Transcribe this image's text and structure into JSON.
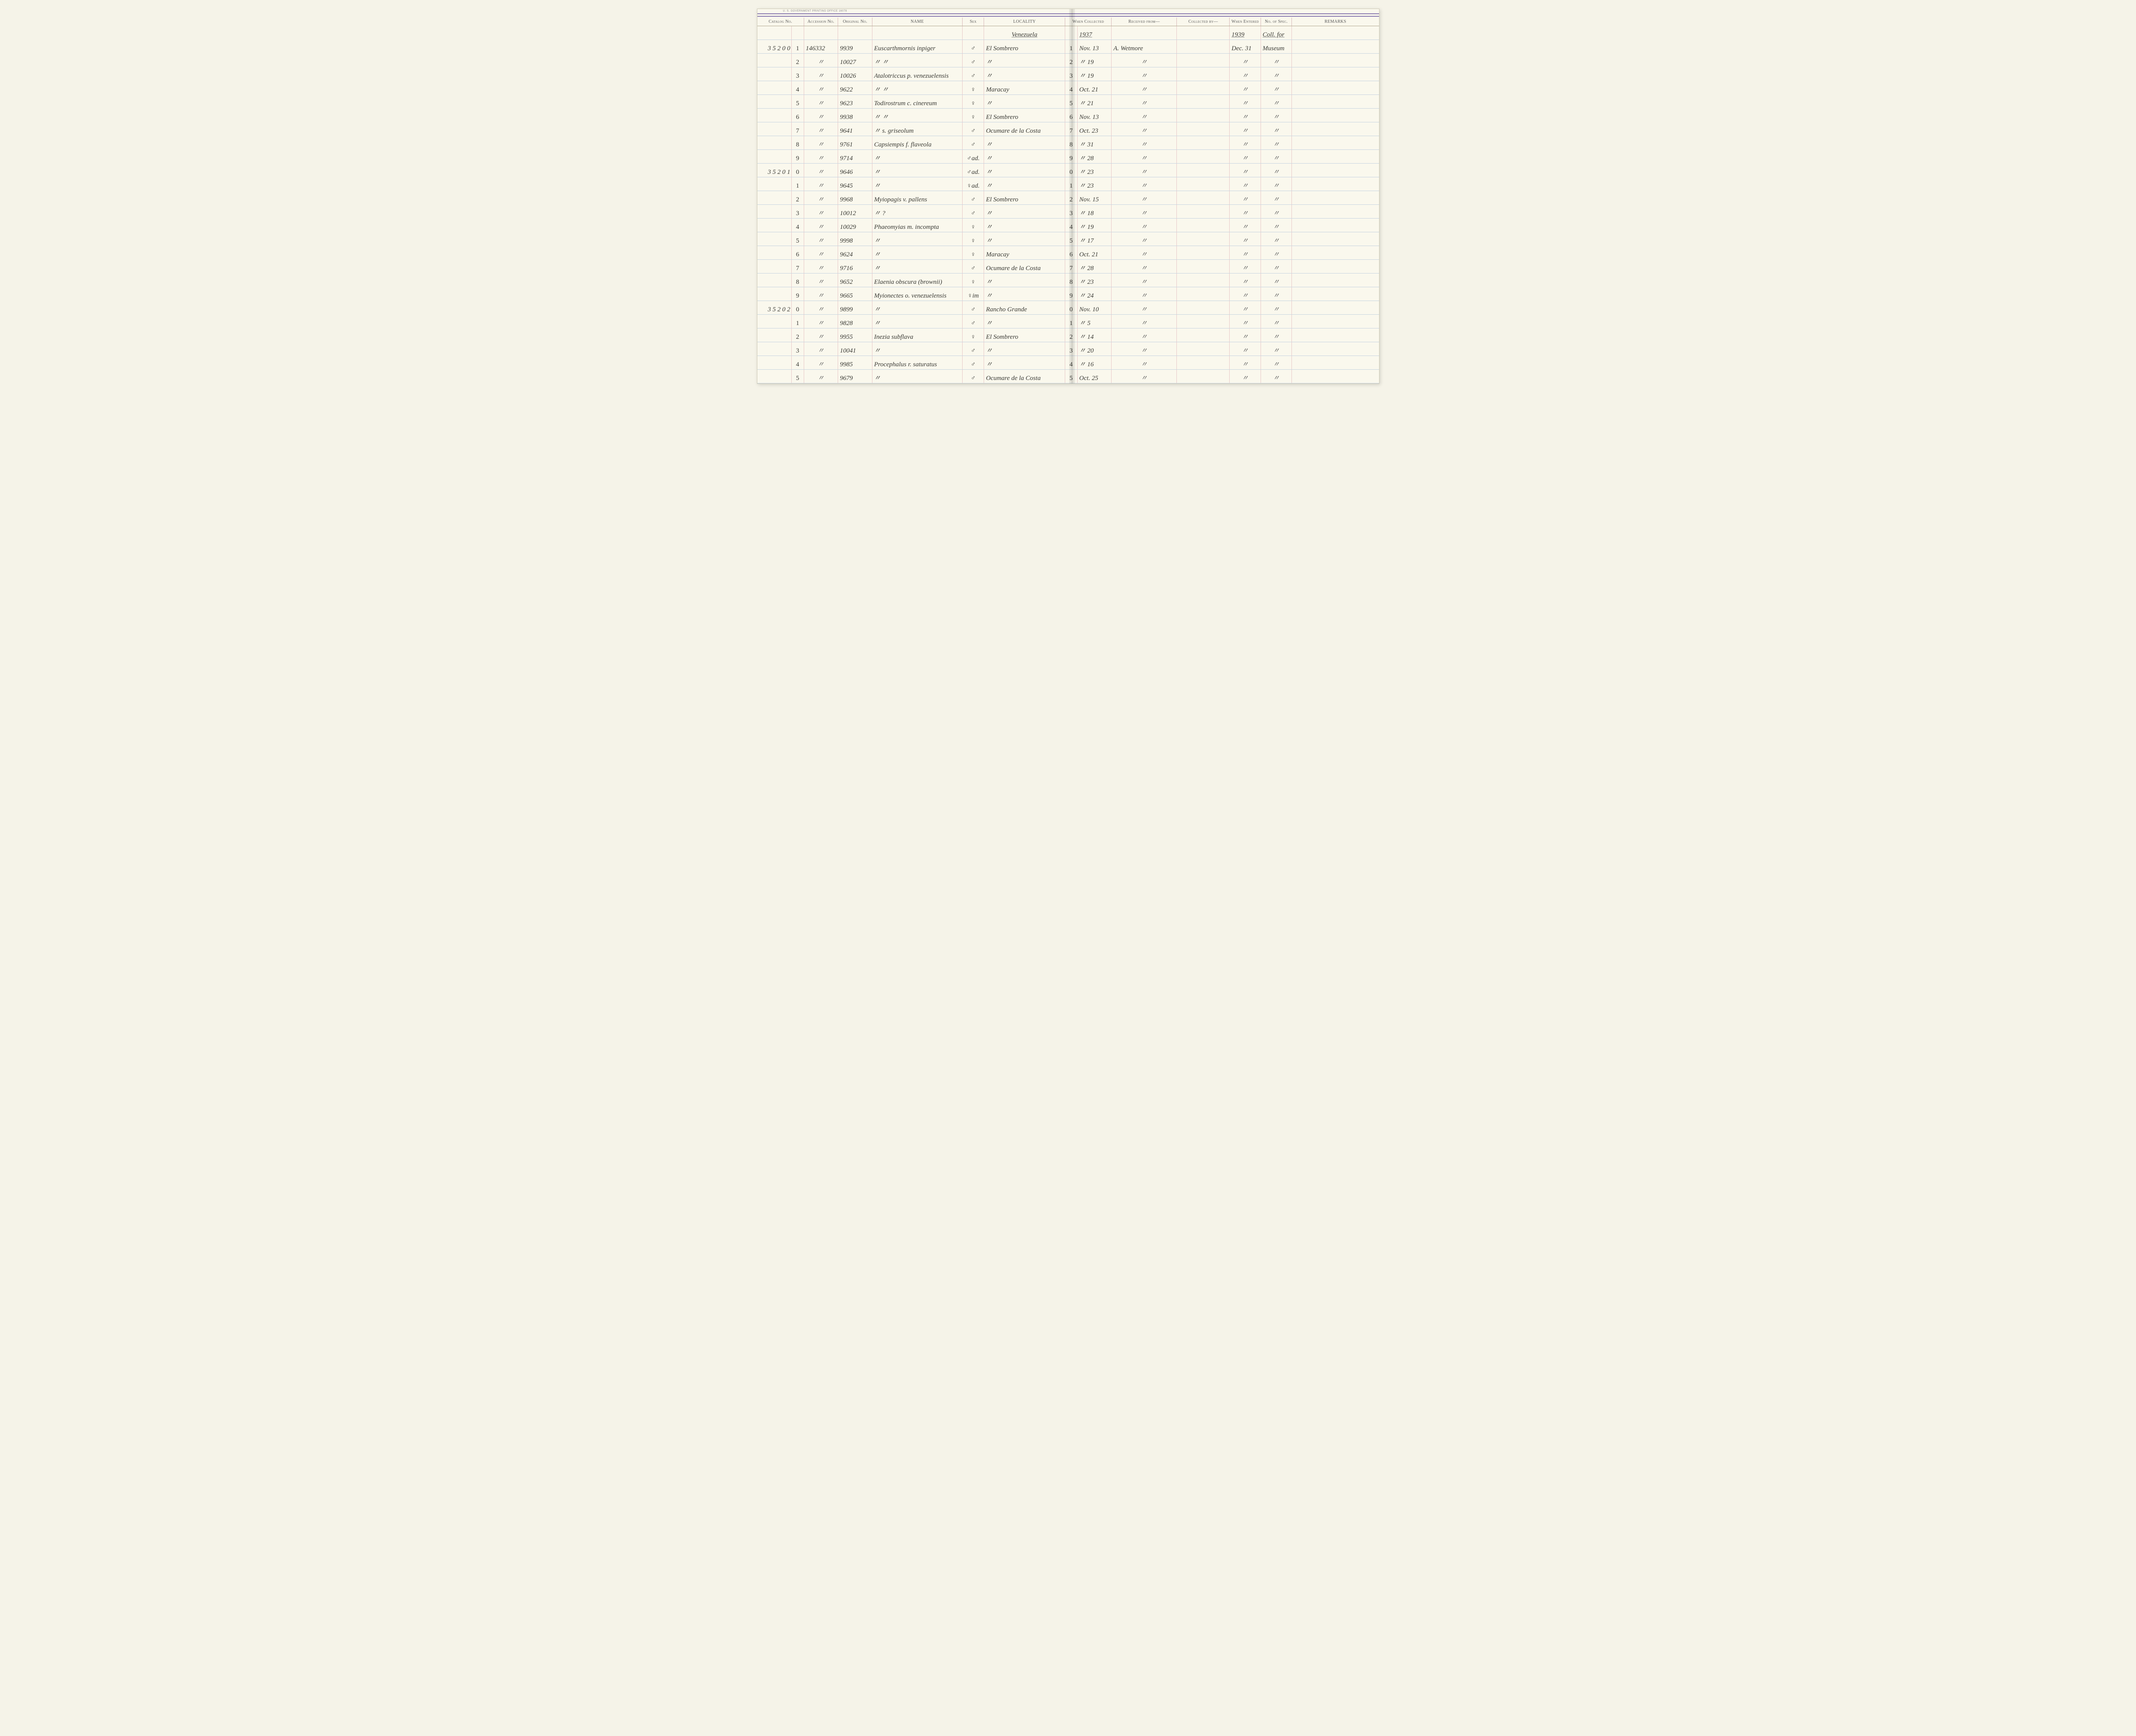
{
  "gpo": "U. S. GOVERNMENT PRINTING OFFICE   16078",
  "headers": {
    "catalog": "Catalog No.",
    "accession": "Accession No.",
    "original": "Original No.",
    "name": "NAME",
    "sex": "Sex",
    "locality": "LOCALITY",
    "when": "When Collected",
    "received": "Received from—",
    "collected_by": "Collected by—",
    "entered": "When Entered",
    "spec": "No. of Spec.",
    "remarks": "REMARKS"
  },
  "context_row": {
    "locality": "Venezuela",
    "when": "1937",
    "entered": "1939",
    "spec": "Coll. for"
  },
  "rows": [
    {
      "cat": "3 5 2 0 0",
      "sub": "1",
      "acc": "146332",
      "orig": "9939",
      "name": "Euscarthmornis inpiger",
      "sex": "♂",
      "loc": "El Sombrero",
      "wsub": "1",
      "when": "Nov. 13",
      "recv": "A. Wetmore",
      "collby": "",
      "ent": "Dec. 31",
      "spec": "Museum"
    },
    {
      "cat": "",
      "sub": "2",
      "acc": "〃",
      "orig": "10027",
      "name": "〃        〃",
      "sex": "♂",
      "loc": "〃",
      "wsub": "2",
      "when": "〃   19",
      "recv": "〃",
      "collby": "",
      "ent": "〃",
      "spec": "〃"
    },
    {
      "cat": "",
      "sub": "3",
      "acc": "〃",
      "orig": "10026",
      "name": "Atalotriccus p. venezuelensis",
      "sex": "♂",
      "loc": "〃",
      "wsub": "3",
      "when": "〃   19",
      "recv": "〃",
      "collby": "",
      "ent": "〃",
      "spec": "〃"
    },
    {
      "cat": "",
      "sub": "4",
      "acc": "〃",
      "orig": "9622",
      "name": "〃        〃",
      "sex": "♀",
      "loc": "Maracay",
      "wsub": "4",
      "when": "Oct. 21",
      "recv": "〃",
      "collby": "",
      "ent": "〃",
      "spec": "〃"
    },
    {
      "cat": "",
      "sub": "5",
      "acc": "〃",
      "orig": "9623",
      "name": "Todirostrum c. cinereum",
      "sex": "♀",
      "loc": "〃",
      "wsub": "5",
      "when": "〃   21",
      "recv": "〃",
      "collby": "",
      "ent": "〃",
      "spec": "〃"
    },
    {
      "cat": "",
      "sub": "6",
      "acc": "〃",
      "orig": "9938",
      "name": "〃        〃",
      "sex": "♀",
      "loc": "El Sombrero",
      "wsub": "6",
      "when": "Nov. 13",
      "recv": "〃",
      "collby": "",
      "ent": "〃",
      "spec": "〃"
    },
    {
      "cat": "",
      "sub": "7",
      "acc": "〃",
      "orig": "9641",
      "name": "〃   s. griseolum",
      "sex": "♂",
      "loc": "Ocumare de la Costa",
      "wsub": "7",
      "when": "Oct. 23",
      "recv": "〃",
      "collby": "",
      "ent": "〃",
      "spec": "〃"
    },
    {
      "cat": "",
      "sub": "8",
      "acc": "〃",
      "orig": "9761",
      "name": "Capsiempis f. flaveola",
      "sex": "♂",
      "loc": "〃",
      "wsub": "8",
      "when": "〃   31",
      "recv": "〃",
      "collby": "",
      "ent": "〃",
      "spec": "〃"
    },
    {
      "cat": "",
      "sub": "9",
      "acc": "〃",
      "orig": "9714",
      "name": "〃",
      "sex": "♂ad.",
      "loc": "〃",
      "wsub": "9",
      "when": "〃   28",
      "recv": "〃",
      "collby": "",
      "ent": "〃",
      "spec": "〃"
    },
    {
      "cat": "3 5 2 0 1",
      "sub": "0",
      "acc": "〃",
      "orig": "9646",
      "name": "〃",
      "sex": "♂ad.",
      "loc": "〃",
      "wsub": "0",
      "when": "〃   23",
      "recv": "〃",
      "collby": "",
      "ent": "〃",
      "spec": "〃"
    },
    {
      "cat": "",
      "sub": "1",
      "acc": "〃",
      "orig": "9645",
      "name": "〃",
      "sex": "♀ad.",
      "loc": "〃",
      "wsub": "1",
      "when": "〃   23",
      "recv": "〃",
      "collby": "",
      "ent": "〃",
      "spec": "〃"
    },
    {
      "cat": "",
      "sub": "2",
      "acc": "〃",
      "orig": "9968",
      "name": "Myiopagis v. pallens",
      "sex": "♂",
      "loc": "El Sombrero",
      "wsub": "2",
      "when": "Nov. 15",
      "recv": "〃",
      "collby": "",
      "ent": "〃",
      "spec": "〃"
    },
    {
      "cat": "",
      "sub": "3",
      "acc": "〃",
      "orig": "10012",
      "name": "〃        ?",
      "sex": "♂",
      "loc": "〃",
      "wsub": "3",
      "when": "〃   18",
      "recv": "〃",
      "collby": "",
      "ent": "〃",
      "spec": "〃"
    },
    {
      "cat": "",
      "sub": "4",
      "acc": "〃",
      "orig": "10029",
      "name": "Phaeomyias m. incompta",
      "sex": "♀",
      "loc": "〃",
      "wsub": "4",
      "when": "〃   19",
      "recv": "〃",
      "collby": "",
      "ent": "〃",
      "spec": "〃"
    },
    {
      "cat": "",
      "sub": "5",
      "acc": "〃",
      "orig": "9998",
      "name": "〃",
      "sex": "♀",
      "loc": "〃",
      "wsub": "5",
      "when": "〃   17",
      "recv": "〃",
      "collby": "",
      "ent": "〃",
      "spec": "〃"
    },
    {
      "cat": "",
      "sub": "6",
      "acc": "〃",
      "orig": "9624",
      "name": "〃",
      "sex": "♀",
      "loc": "Maracay",
      "wsub": "6",
      "when": "Oct. 21",
      "recv": "〃",
      "collby": "",
      "ent": "〃",
      "spec": "〃"
    },
    {
      "cat": "",
      "sub": "7",
      "acc": "〃",
      "orig": "9716",
      "name": "〃",
      "sex": "♂",
      "loc": "Ocumare de la Costa",
      "wsub": "7",
      "when": "〃   28",
      "recv": "〃",
      "collby": "",
      "ent": "〃",
      "spec": "〃"
    },
    {
      "cat": "",
      "sub": "8",
      "acc": "〃",
      "orig": "9652",
      "name": "Elaenia obscura (brownii)",
      "sex": "♀",
      "loc": "〃",
      "wsub": "8",
      "when": "〃   23",
      "recv": "〃",
      "collby": "",
      "ent": "〃",
      "spec": "〃"
    },
    {
      "cat": "",
      "sub": "9",
      "acc": "〃",
      "orig": "9665",
      "name": "Myionectes o. venezuelensis",
      "sex": "♀im",
      "loc": "〃",
      "wsub": "9",
      "when": "〃   24",
      "recv": "〃",
      "collby": "",
      "ent": "〃",
      "spec": "〃"
    },
    {
      "cat": "3 5 2 0 2",
      "sub": "0",
      "acc": "〃",
      "orig": "9899",
      "name": "〃",
      "sex": "♂",
      "loc": "Rancho Grande",
      "wsub": "0",
      "when": "Nov. 10",
      "recv": "〃",
      "collby": "",
      "ent": "〃",
      "spec": "〃"
    },
    {
      "cat": "",
      "sub": "1",
      "acc": "〃",
      "orig": "9828",
      "name": "〃",
      "sex": "♂",
      "loc": "〃",
      "wsub": "1",
      "when": "〃   5",
      "recv": "〃",
      "collby": "",
      "ent": "〃",
      "spec": "〃"
    },
    {
      "cat": "",
      "sub": "2",
      "acc": "〃",
      "orig": "9955",
      "name": "Inezia subflava",
      "sex": "♀",
      "loc": "El Sombrero",
      "wsub": "2",
      "when": "〃   14",
      "recv": "〃",
      "collby": "",
      "ent": "〃",
      "spec": "〃"
    },
    {
      "cat": "",
      "sub": "3",
      "acc": "〃",
      "orig": "10041",
      "name": "〃",
      "sex": "♂",
      "loc": "〃",
      "wsub": "3",
      "when": "〃   20",
      "recv": "〃",
      "collby": "",
      "ent": "〃",
      "spec": "〃"
    },
    {
      "cat": "",
      "sub": "4",
      "acc": "〃",
      "orig": "9985",
      "name": "Procephalus r. saturatus",
      "sex": "♂",
      "loc": "〃",
      "wsub": "4",
      "when": "〃   16",
      "recv": "〃",
      "collby": "",
      "ent": "〃",
      "spec": "〃"
    },
    {
      "cat": "",
      "sub": "5",
      "acc": "〃",
      "orig": "9679",
      "name": "〃",
      "sex": "♂",
      "loc": "Ocumare de la Costa",
      "wsub": "5",
      "when": "Oct. 25",
      "recv": "〃",
      "collby": "",
      "ent": "〃",
      "spec": "〃"
    }
  ]
}
